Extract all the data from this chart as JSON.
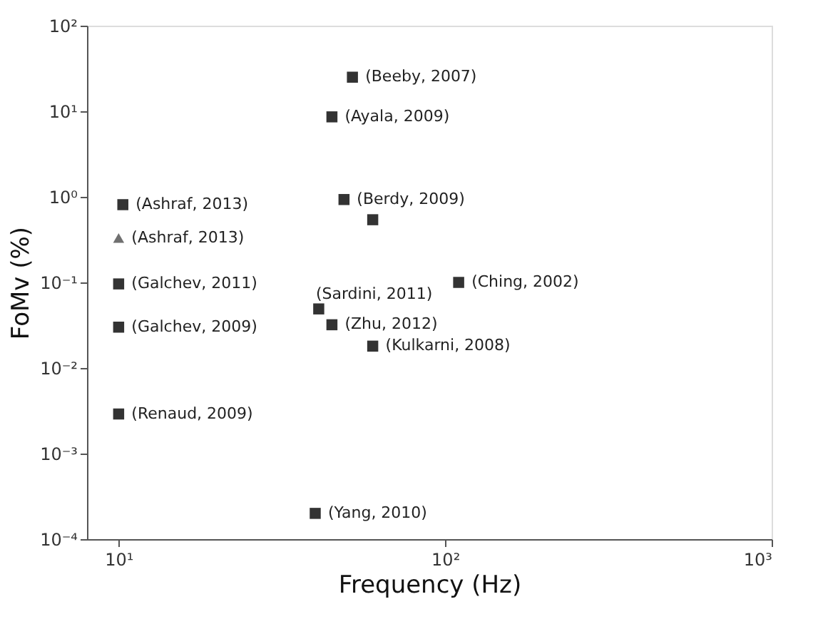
{
  "chart_data": {
    "type": "scatter",
    "xlabel": "Frequency (Hz)",
    "ylabel": "FoMv (%)",
    "log": "xy",
    "grid": false,
    "xlim": [
      8,
      1000
    ],
    "ylim": [
      0.0001,
      100
    ],
    "xticks": [
      {
        "value": 10,
        "label": "10¹"
      },
      {
        "value": 100,
        "label": "10²"
      },
      {
        "value": 1000,
        "label": "10³"
      }
    ],
    "yticks": [
      {
        "value": 0.0001,
        "label": "10⁻⁴"
      },
      {
        "value": 0.001,
        "label": "10⁻³"
      },
      {
        "value": 0.01,
        "label": "10⁻²"
      },
      {
        "value": 0.1,
        "label": "10⁻¹"
      },
      {
        "value": 1,
        "label": "10⁰"
      },
      {
        "value": 10,
        "label": "10¹"
      },
      {
        "value": 100,
        "label": "10²"
      }
    ],
    "series": [
      {
        "color": "#333333",
        "marker": "square",
        "x": [
          52,
          45,
          10.3,
          49,
          60,
          10,
          10,
          10,
          110,
          41,
          45,
          60,
          40
        ],
        "values": [
          25,
          8.6,
          0.81,
          0.93,
          0.54,
          0.096,
          0.03,
          0.0029,
          0.1,
          0.049,
          0.032,
          0.018,
          0.0002
        ]
      },
      {
        "color": "#707070",
        "marker": "triangle",
        "x": [
          10
        ],
        "values": [
          0.33
        ]
      }
    ],
    "annotations": [
      {
        "text": "(Beeby, 2007)",
        "x": 52,
        "y": 25
      },
      {
        "text": "(Ayala, 2009)",
        "x": 45,
        "y": 8.6
      },
      {
        "text": "(Ashraf, 2013)",
        "x": 10.3,
        "y": 0.81
      },
      {
        "text": "(Ashraf, 2013)",
        "x": 10,
        "y": 0.33
      },
      {
        "text": "(Berdy, 2009)",
        "x": 49,
        "y": 0.93
      },
      {
        "text": "(Galchev, 2011)",
        "x": 10,
        "y": 0.096
      },
      {
        "text": "(Galchev, 2009)",
        "x": 10,
        "y": 0.03
      },
      {
        "text": "(Renaud, 2009)",
        "x": 10,
        "y": 0.0029
      },
      {
        "text": "(Ching, 2002)",
        "x": 110,
        "y": 0.1
      },
      {
        "text": "(Sardini, 2011)",
        "x": 41,
        "y": 0.049
      },
      {
        "text": "(Zhu, 2012)",
        "x": 45,
        "y": 0.032
      },
      {
        "text": "(Kulkarni, 2008)",
        "x": 60,
        "y": 0.018
      },
      {
        "text": "(Yang, 2010)",
        "x": 40,
        "y": 0.0002
      }
    ]
  }
}
